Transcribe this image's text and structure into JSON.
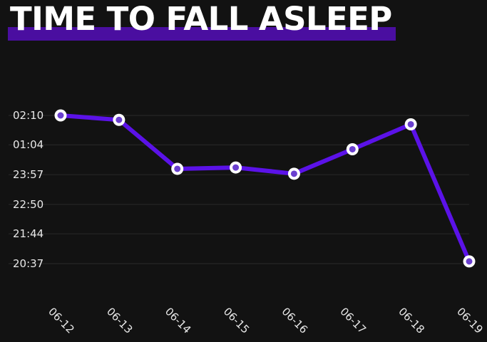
{
  "header": {
    "title": "TIME TO FALL ASLEEP"
  },
  "colors": {
    "background": "#121212",
    "accent_bar": "#4a0ea0",
    "line": "#5b12e8",
    "marker_fill": "#6a3fcf",
    "marker_ring": "#ffffff",
    "grid": "#2a2a2a",
    "text": "#e8e8e8"
  },
  "chart_data": {
    "type": "line",
    "title": "TIME TO FALL ASLEEP",
    "xlabel": "",
    "ylabel": "",
    "categories": [
      "06-12",
      "06-13",
      "06-14",
      "06-15",
      "06-16",
      "06-17",
      "06-18",
      "06-19"
    ],
    "series": [
      {
        "values_minutes_since_midnight_rel": [
          1570,
          1560,
          1450,
          1453,
          1439,
          1494,
          1550,
          1242
        ],
        "values": [
          "02:10",
          "02:00",
          "00:10",
          "00:13",
          "23:59",
          "00:54",
          "01:50",
          "20:42"
        ]
      }
    ],
    "y_ticks": [
      "20:37",
      "21:44",
      "22:50",
      "23:57",
      "01:04",
      "02:10"
    ],
    "grid": true,
    "legend": "none"
  }
}
